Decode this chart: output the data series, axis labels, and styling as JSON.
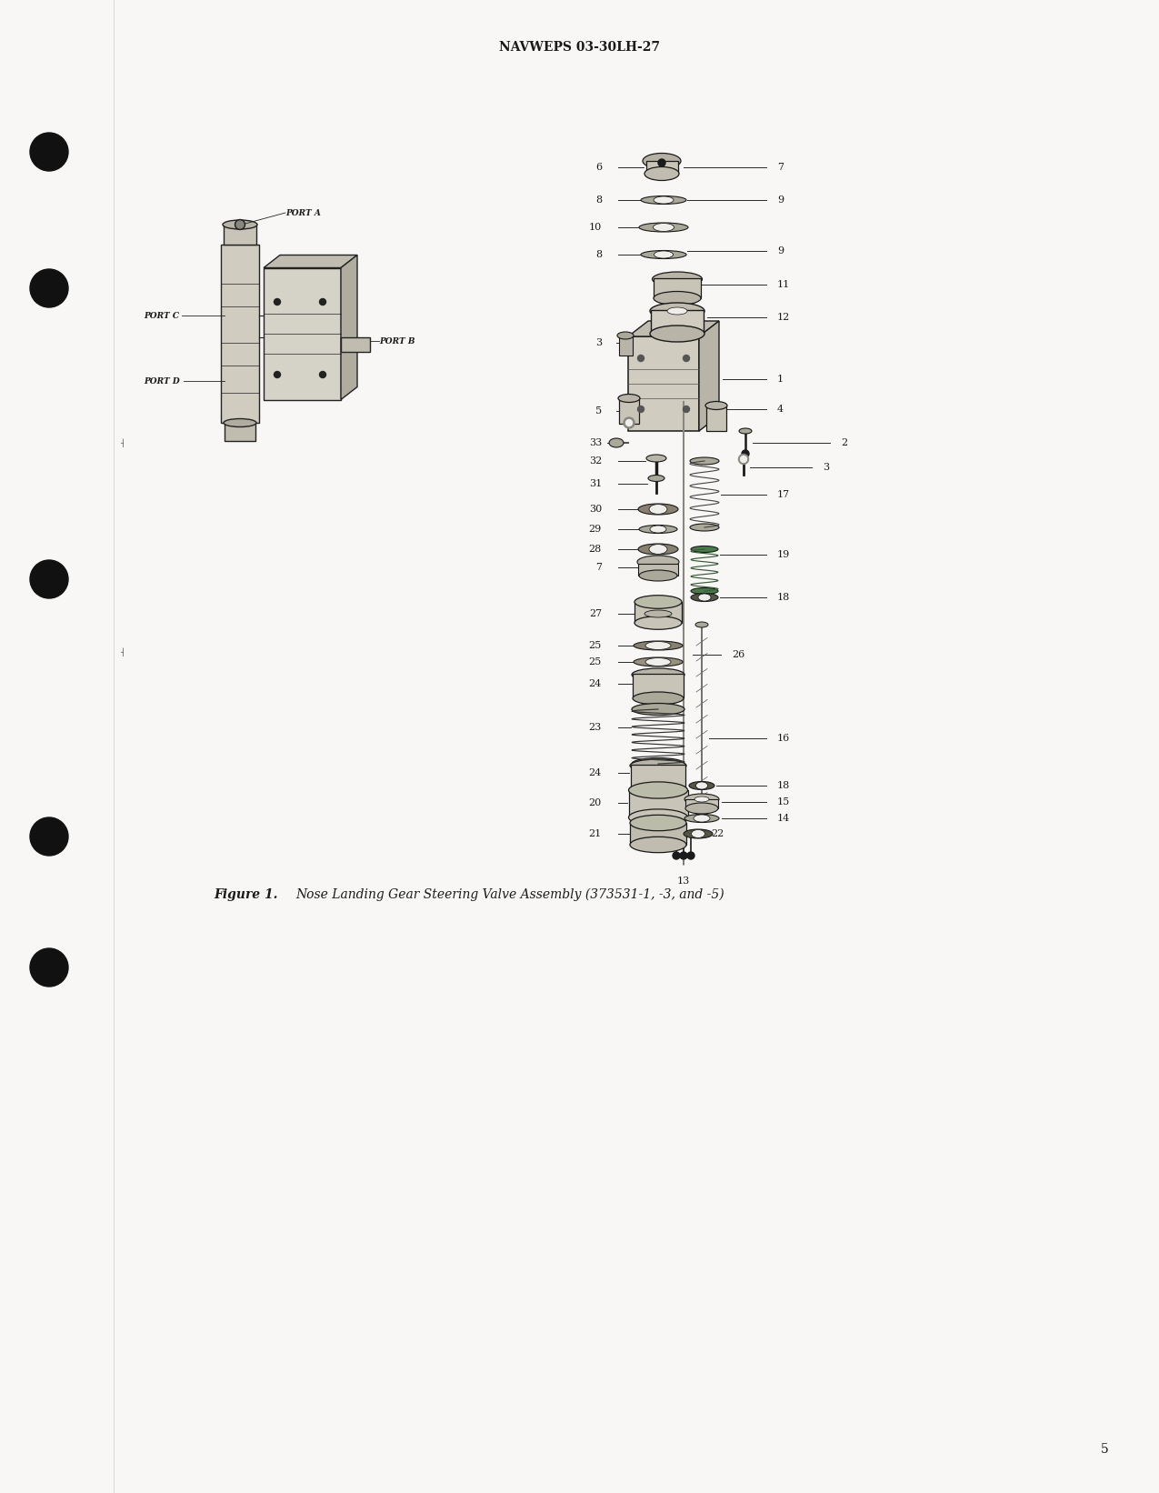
{
  "header_text": "NAVWEPS 03-30LH-27",
  "caption_text": "Figure 1.   Nose Landing Gear Steering Valve Assembly (373531-1, -3, and -5)",
  "page_number": "5",
  "bg_color": "#f8f7f5",
  "text_color": "#1a1a1a",
  "page_width": 12.75,
  "page_height": 16.42,
  "dpi": 100
}
